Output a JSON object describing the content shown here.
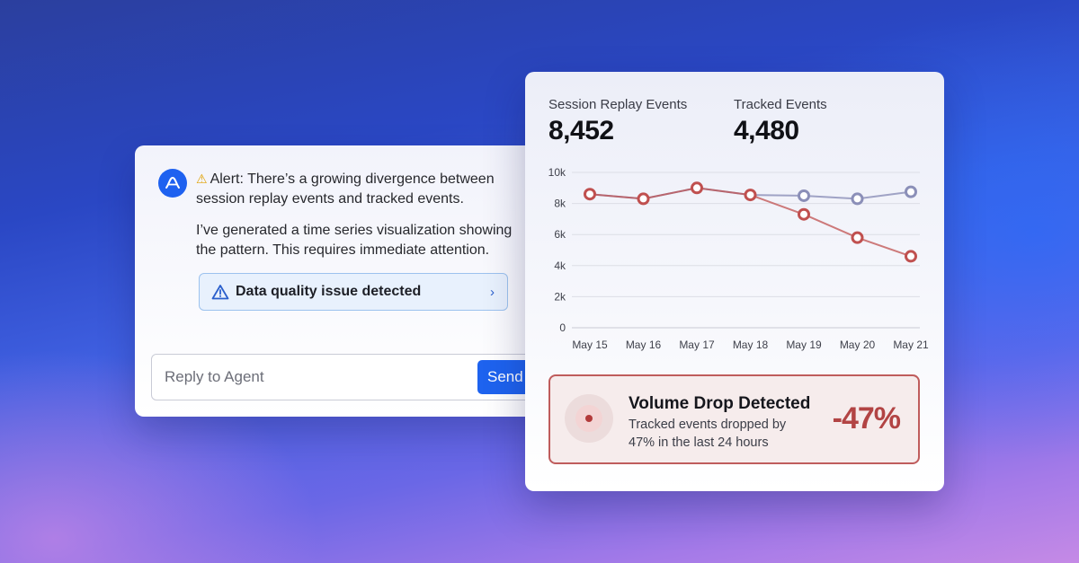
{
  "chat": {
    "alert_text": "Alert: There’s a growing divergence between session replay events and tracked events.",
    "message_text": "I’ve generated a time series visualization showing the pattern. This requires immediate attention.",
    "issue_button_label": "Data quality issue detected",
    "reply_placeholder": "Reply to Agent",
    "send_label": "Send"
  },
  "kpis": [
    {
      "label": "Session Replay Events",
      "value": "8,452"
    },
    {
      "label": "Tracked Events",
      "value": "4,480"
    }
  ],
  "chart_data": {
    "type": "line",
    "x": [
      "May 15",
      "May 16",
      "May 17",
      "May 18",
      "May 19",
      "May 20",
      "May 21"
    ],
    "y_ticks": [
      "10k",
      "8k",
      "6k",
      "4k",
      "2k",
      "0"
    ],
    "ylim": [
      0,
      10000
    ],
    "grid": true,
    "series": [
      {
        "name": "Session Replay Events",
        "color": "#8b8fb8",
        "values": [
          8600,
          8300,
          9000,
          8550,
          8500,
          8300,
          8750
        ]
      },
      {
        "name": "Tracked Events",
        "color": "#c0504f",
        "values": [
          8600,
          8300,
          9000,
          8550,
          7300,
          5800,
          4600
        ]
      }
    ]
  },
  "alert": {
    "title": "Volume Drop Detected",
    "description": "Tracked events dropped by 47% in the last 24 hours",
    "percent": "-47%",
    "accent_color": "#bf5c5c"
  }
}
